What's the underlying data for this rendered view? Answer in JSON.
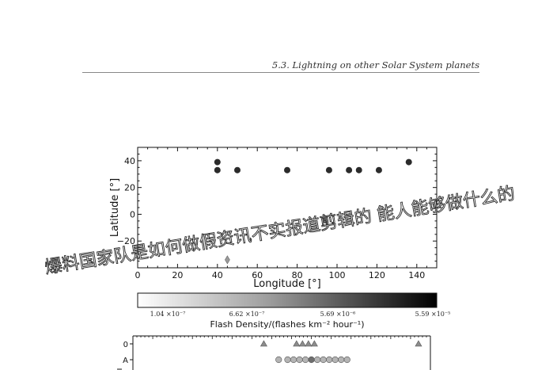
{
  "running_header": "5.3.  Lightning on other Solar System planets",
  "watermark": "爆料国家队是如何做假资讯不实报道剪辑的 能人能够做什么的",
  "colors": {
    "marker": "#2b2b2b",
    "diamond": "#9a9a9a",
    "triangle": "#8c8c8c",
    "circle": "#b4b4b4",
    "circle_dark": "#6e6e6e"
  },
  "chart_data": [
    {
      "type": "scatter",
      "xlabel": "Longitude [°]",
      "ylabel": "Latitude [°]",
      "xlim": [
        0,
        150
      ],
      "ylim": [
        -40,
        50
      ],
      "xticks": [
        0,
        20,
        40,
        60,
        80,
        100,
        120,
        140
      ],
      "yticks": [
        -20,
        0,
        20,
        40
      ],
      "ytick_labels": [
        "−20",
        "0",
        "20",
        "40"
      ],
      "series": [
        {
          "marker": "circle-dark",
          "points": [
            [
              40,
              39
            ],
            [
              40,
              33
            ],
            [
              50,
              33
            ],
            [
              75,
              33
            ],
            [
              96,
              33
            ],
            [
              106,
              33
            ],
            [
              111,
              33
            ],
            [
              121,
              33
            ],
            [
              136,
              39
            ]
          ]
        },
        {
          "marker": "diamond-gray",
          "points": [
            [
              45,
              -34
            ]
          ]
        }
      ],
      "colorbar": {
        "label": "Flash Density/(flashes km⁻² hour⁻¹)",
        "tick_labels": [
          "1.04 ×10⁻⁷",
          "6.62 ×10⁻⁷",
          "5.69 ×10⁻⁶",
          "5.59 ×10⁻⁵"
        ]
      }
    },
    {
      "type": "scatter",
      "yticks_labels": [
        "0",
        "A"
      ],
      "rows": [
        {
          "label": "0",
          "marker": "triangle",
          "x": [
            0.44,
            0.55,
            0.57,
            0.59,
            0.61,
            0.96
          ]
        },
        {
          "label": "A",
          "marker": "circle",
          "x": [
            0.49,
            0.52,
            0.54,
            0.56,
            0.58,
            0.6,
            0.62,
            0.64,
            0.66,
            0.68,
            0.7,
            0.72
          ]
        }
      ]
    }
  ]
}
